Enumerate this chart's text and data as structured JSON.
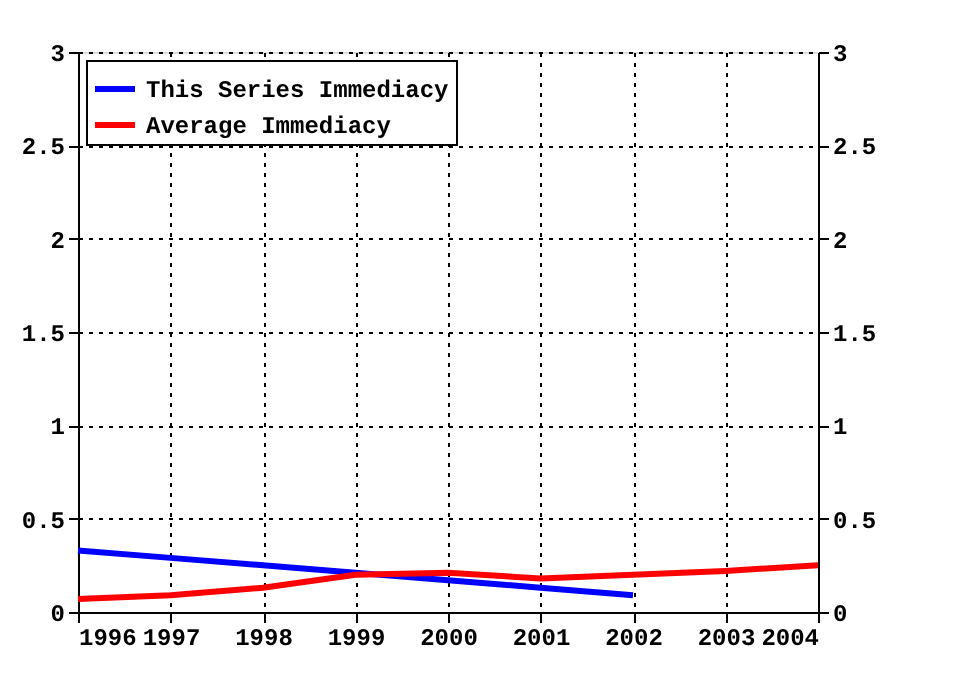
{
  "chart_data": {
    "type": "line",
    "x": [
      1996,
      1997,
      1998,
      1999,
      2000,
      2001,
      2002,
      2003,
      2004
    ],
    "series": [
      {
        "name": "This Series Immediacy",
        "color": "#0000ff",
        "x": [
          1996,
          1997,
          1998,
          1999,
          2000,
          2001,
          2002
        ],
        "values": [
          0.33,
          0.29,
          0.25,
          0.21,
          0.17,
          0.13,
          0.09
        ]
      },
      {
        "name": "Average Immediacy",
        "color": "#ff0000",
        "values": [
          0.07,
          0.09,
          0.13,
          0.2,
          0.21,
          0.18,
          0.2,
          0.22,
          0.25
        ]
      }
    ],
    "xlim": [
      1996,
      2004
    ],
    "xticks": [
      1996,
      1997,
      1998,
      1999,
      2000,
      2001,
      2002,
      2003,
      2004
    ],
    "ylim": [
      0,
      3
    ],
    "yticks": [
      0,
      0.5,
      1,
      1.5,
      2,
      2.5,
      3
    ],
    "y2lim": [
      0,
      3
    ],
    "y2ticks": [
      0,
      0.5,
      1,
      1.5,
      2,
      2.5,
      3
    ],
    "grid": true,
    "legend": "top left",
    "marker": "none",
    "line_style": "solid"
  }
}
